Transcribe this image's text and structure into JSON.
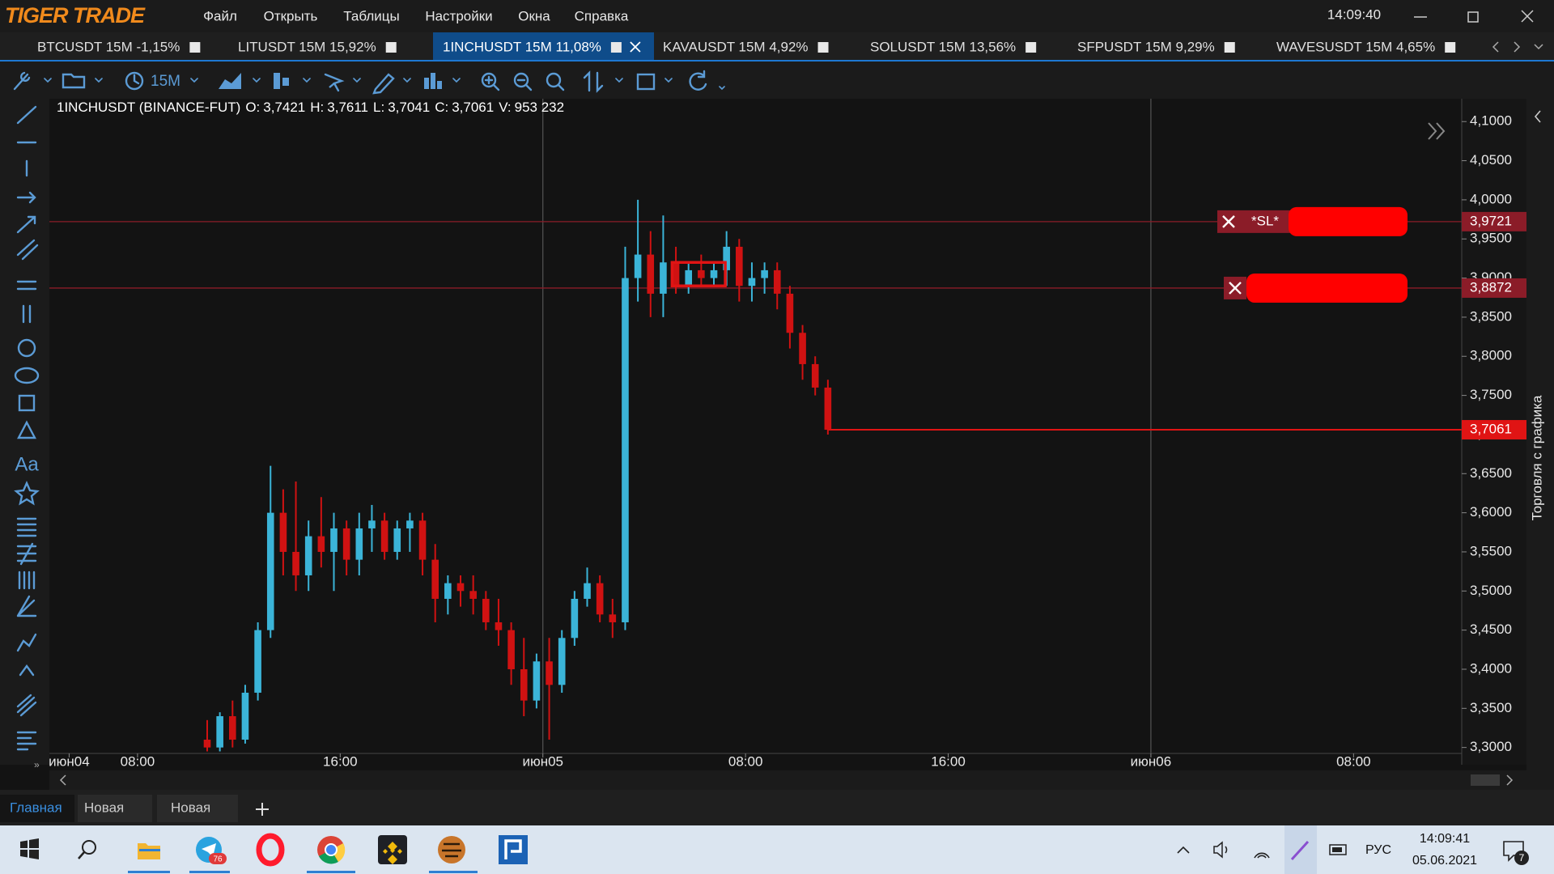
{
  "app": {
    "logo": "TIGER TRADE",
    "menu": [
      "Файл",
      "Открыть",
      "Таблицы",
      "Настройки",
      "Окна",
      "Справка"
    ],
    "clock": "14:09:40"
  },
  "tabs": {
    "items": [
      "BTCUSDT 15M -1,15%",
      "LITUSDT 15M 15,92%",
      "1INCHUSDT 15M 11,08%",
      "KAVAUSDT 15M 4,92%",
      "SOLUSDT 15M 13,56%",
      "SFPUSDT 15M 9,29%",
      "WAVESUSDT 15M 4,65%"
    ],
    "active": 2
  },
  "toolbar": {
    "timeframe": "15M"
  },
  "side_panel": {
    "title": "Торговля с графика"
  },
  "bottom_tabs": [
    "Главная",
    "Новая",
    "Новая"
  ],
  "taskbar": {
    "telegram_badge": 76,
    "language": "РУС",
    "time": "14:09:41",
    "date": "05.06.2021",
    "notifications": 7
  },
  "chart_data": {
    "type": "candlestick",
    "symbol": "1INCHUSDT (BINANCE-FUT)",
    "info": [
      {
        "name": "O:",
        "value": 3.7421,
        "label": "3,7421"
      },
      {
        "name": "H:",
        "value": 3.7611,
        "label": "3,7611"
      },
      {
        "name": "L:",
        "value": 3.7041,
        "label": "3,7041"
      },
      {
        "name": "C:",
        "value": 3.7061,
        "label": "3,7061"
      },
      {
        "name": "V:",
        "value": 953232,
        "label": "953 232"
      }
    ],
    "x": [
      10.75,
      11.25,
      11.75,
      12.25,
      12.75,
      13.25,
      13.75,
      14.25,
      14.75,
      15.25,
      15.75,
      16.25,
      16.75,
      17.25,
      17.75,
      18.25,
      18.75,
      19.25,
      19.75,
      20.25,
      20.75,
      21.25,
      21.75,
      22.25,
      22.75,
      23.25,
      23.75,
      24.25,
      24.75,
      25.25,
      25.75,
      26.25,
      26.75,
      27.25,
      27.75,
      28.25,
      28.75,
      29.25,
      29.75,
      30.25,
      30.75,
      31.25,
      31.75,
      32.25,
      32.75,
      33.25,
      33.75,
      34.25,
      34.75,
      35.25
    ],
    "open": [
      3.31,
      3.3,
      3.34,
      3.31,
      3.37,
      3.45,
      3.6,
      3.55,
      3.52,
      3.57,
      3.55,
      3.58,
      3.54,
      3.58,
      3.59,
      3.55,
      3.58,
      3.59,
      3.54,
      3.49,
      3.51,
      3.5,
      3.49,
      3.46,
      3.45,
      3.4,
      3.36,
      3.41,
      3.38,
      3.44,
      3.49,
      3.51,
      3.47,
      3.46,
      3.9,
      3.93,
      3.88,
      3.92,
      3.89,
      3.91,
      3.9,
      3.91,
      3.94,
      3.89,
      3.9,
      3.91,
      3.88,
      3.83,
      3.79,
      3.76
    ],
    "high": [
      3.335,
      3.345,
      3.36,
      3.38,
      3.46,
      3.66,
      3.63,
      3.64,
      3.59,
      3.62,
      3.6,
      3.59,
      3.6,
      3.61,
      3.6,
      3.59,
      3.6,
      3.6,
      3.56,
      3.52,
      3.52,
      3.52,
      3.5,
      3.49,
      3.46,
      3.44,
      3.42,
      3.44,
      3.45,
      3.5,
      3.53,
      3.52,
      3.49,
      3.94,
      4.0,
      3.96,
      3.98,
      3.94,
      3.92,
      3.93,
      3.92,
      3.96,
      3.95,
      3.92,
      3.92,
      3.92,
      3.89,
      3.84,
      3.8,
      3.77
    ],
    "low": [
      3.295,
      3.295,
      3.3,
      3.305,
      3.36,
      3.44,
      3.52,
      3.5,
      3.5,
      3.53,
      3.5,
      3.52,
      3.52,
      3.55,
      3.54,
      3.54,
      3.55,
      3.52,
      3.46,
      3.47,
      3.48,
      3.47,
      3.45,
      3.43,
      3.38,
      3.34,
      3.35,
      3.31,
      3.37,
      3.43,
      3.48,
      3.46,
      3.44,
      3.45,
      3.87,
      3.85,
      3.85,
      3.88,
      3.88,
      3.89,
      3.89,
      3.89,
      3.87,
      3.87,
      3.88,
      3.86,
      3.81,
      3.77,
      3.75,
      3.7
    ],
    "close": [
      3.3,
      3.34,
      3.31,
      3.37,
      3.45,
      3.6,
      3.55,
      3.52,
      3.57,
      3.55,
      3.58,
      3.54,
      3.58,
      3.59,
      3.55,
      3.58,
      3.59,
      3.54,
      3.49,
      3.51,
      3.5,
      3.49,
      3.46,
      3.45,
      3.4,
      3.36,
      3.41,
      3.38,
      3.44,
      3.49,
      3.51,
      3.47,
      3.46,
      3.9,
      3.93,
      3.88,
      3.92,
      3.89,
      3.91,
      3.9,
      3.91,
      3.94,
      3.89,
      3.9,
      3.91,
      3.88,
      3.83,
      3.79,
      3.76,
      3.7061
    ],
    "up_color": "#3bb4d8",
    "down_color": "#d01212",
    "xlim": [
      4.52,
      60.27
    ],
    "xticks": [
      {
        "value": 5.3,
        "label": "июн04"
      },
      {
        "value": 8,
        "label": "08:00"
      },
      {
        "value": 16,
        "label": "16:00"
      },
      {
        "value": 24,
        "label": "июн05"
      },
      {
        "value": 32,
        "label": "08:00"
      },
      {
        "value": 40,
        "label": "16:00"
      },
      {
        "value": 48,
        "label": "июн06"
      },
      {
        "value": 56,
        "label": "08:00"
      }
    ],
    "vlines": [
      24,
      48
    ],
    "ylim": [
      3.2924,
      4.1292
    ],
    "yticks": [
      {
        "value": 3.3,
        "label": "3,3000"
      },
      {
        "value": 3.35,
        "label": "3,3500"
      },
      {
        "value": 3.4,
        "label": "3,4000"
      },
      {
        "value": 3.45,
        "label": "3,4500"
      },
      {
        "value": 3.5,
        "label": "3,5000"
      },
      {
        "value": 3.55,
        "label": "3,5500"
      },
      {
        "value": 3.6,
        "label": "3,6000"
      },
      {
        "value": 3.65,
        "label": "3,6500"
      },
      {
        "value": 3.7,
        "label": "3,7000"
      },
      {
        "value": 3.75,
        "label": "3,7500"
      },
      {
        "value": 3.8,
        "label": "3,8000"
      },
      {
        "value": 3.85,
        "label": "3,8500"
      },
      {
        "value": 3.9,
        "label": "3,9000"
      },
      {
        "value": 3.95,
        "label": "3,9500"
      },
      {
        "value": 4.0,
        "label": "4,0000"
      },
      {
        "value": 4.05,
        "label": "4,0500"
      },
      {
        "value": 4.1,
        "label": "4,1000"
      }
    ],
    "grid": false,
    "levels": [
      {
        "value": 3.9721,
        "label": "3,9721",
        "tag": "*SL*",
        "color": "#8b1c28"
      },
      {
        "value": 3.8872,
        "label": "3,8872",
        "color": "#8b1c28"
      },
      {
        "value": 3.7061,
        "label": "3,7061",
        "color": "#e01414"
      }
    ],
    "box": {
      "x": [
        29.1,
        31.2
      ],
      "y": [
        3.89,
        3.92
      ],
      "color": "#e01414"
    }
  }
}
